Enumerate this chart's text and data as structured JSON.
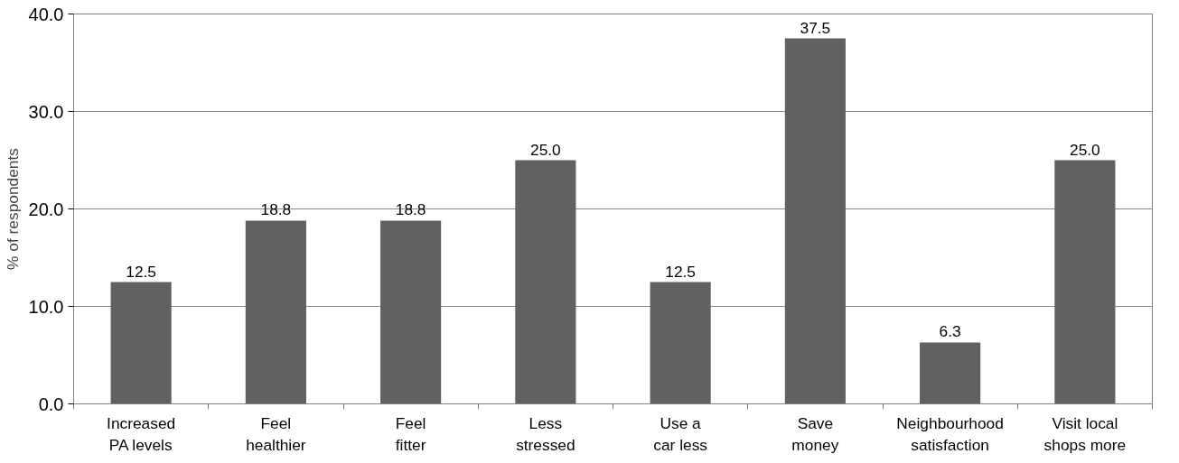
{
  "chart_data": {
    "type": "bar",
    "ylabel": "% of respondents",
    "categories": [
      "Increased\nPA levels",
      "Feel\nhealthier",
      "Feel\nfitter",
      "Less\nstressed",
      "Use a\ncar less",
      "Save\nmoney",
      "Neighbourhood\nsatisfaction",
      "Visit local\nshops more"
    ],
    "values": [
      12.5,
      18.8,
      18.8,
      25.0,
      12.5,
      37.5,
      6.3,
      25.0
    ],
    "color": "#616161",
    "ylim": [
      0,
      40
    ],
    "yticks": [
      {
        "value": 0,
        "label": "0.0"
      },
      {
        "value": 10,
        "label": "10.0"
      },
      {
        "value": 20,
        "label": "20.0"
      },
      {
        "value": 30,
        "label": "30.0"
      },
      {
        "value": 40,
        "label": "40.0"
      }
    ],
    "grid": "y",
    "value_labels": [
      "12.5",
      "18.8",
      "18.8",
      "25.0",
      "12.5",
      "37.5",
      "6.3",
      "25.0"
    ]
  }
}
